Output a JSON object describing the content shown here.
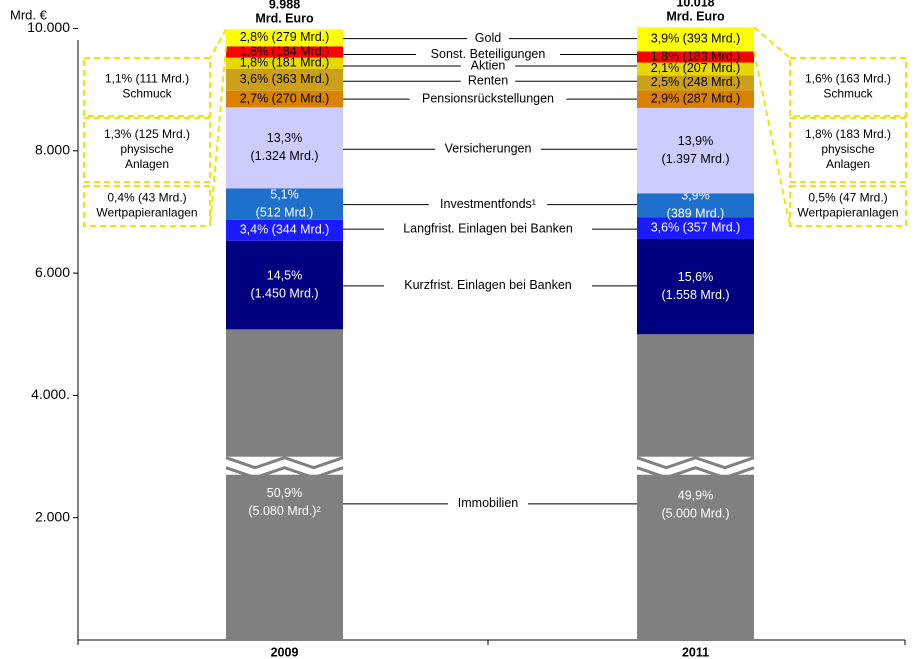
{
  "chart_data": {
    "type": "bar",
    "stacked": true,
    "y_unit_label": "Mrd. €",
    "ylim": [
      0,
      10500
    ],
    "y_break_at": 2850,
    "y_ticks": [
      {
        "value": 2000,
        "label": "2.000"
      },
      {
        "value": 4000,
        "label": "4.000."
      },
      {
        "value": 6000,
        "label": "6.000"
      },
      {
        "value": 8000,
        "label": "8.000"
      },
      {
        "value": 10000,
        "label": "10.000"
      }
    ],
    "categories": [
      "2009",
      "2011"
    ],
    "totals": [
      {
        "value": "9.988",
        "unit": "Mrd. Euro"
      },
      {
        "value": "10.018",
        "unit": "Mrd. Euro"
      }
    ],
    "segments": [
      {
        "name": "Immobilien",
        "color": "#808080",
        "text_color": "#ffffff",
        "two_line": true,
        "break": true,
        "values": [
          5080,
          5000
        ],
        "labels": [
          [
            "50,9%",
            "(5.080 Mrd.)²"
          ],
          [
            "49,9%",
            "(5.000 Mrd.)"
          ]
        ]
      },
      {
        "name": "Kurzfrist. Einlagen bei Banken",
        "color": "#000080",
        "text_color": "#ffffff",
        "two_line": true,
        "values": [
          1450,
          1558
        ],
        "labels": [
          [
            "14,5%",
            "(1.450 Mrd.)"
          ],
          [
            "15,6%",
            "(1.558 Mrd.)"
          ]
        ]
      },
      {
        "name": "Langfrist. Einlagen bei Banken",
        "color": "#1a1aff",
        "text_color": "#ffffff",
        "two_line": false,
        "values": [
          344,
          357
        ],
        "labels": [
          [
            "3,4% (344 Mrd.)"
          ],
          [
            "3,6% (357 Mrd.)"
          ]
        ]
      },
      {
        "name": "Investmentfonds¹",
        "color": "#1f6fcc",
        "text_color": "#ffffff",
        "two_line": true,
        "values": [
          512,
          389
        ],
        "labels": [
          [
            "5,1%",
            "(512 Mrd.)"
          ],
          [
            "3,9%",
            "(389 Mrd.)"
          ]
        ]
      },
      {
        "name": "Versicherungen",
        "color": "#ccccff",
        "text_color": "#000000",
        "two_line": true,
        "values": [
          1324,
          1397
        ],
        "labels": [
          [
            "13,3%",
            "(1.324 Mrd.)"
          ],
          [
            "13,9%",
            "(1.397 Mrd.)"
          ]
        ]
      },
      {
        "name": "Pensionsrückstellungen",
        "color": "#d98200",
        "text_color": "#000000",
        "two_line": false,
        "values": [
          270,
          287
        ],
        "labels": [
          [
            "2,7% (270 Mrd.)"
          ],
          [
            "2,9% (287 Mrd.)"
          ]
        ]
      },
      {
        "name": "Renten",
        "color": "#cca01a",
        "text_color": "#000000",
        "two_line": false,
        "values": [
          363,
          248
        ],
        "labels": [
          [
            "3,6% (363 Mrd.)"
          ],
          [
            "2,5% (248 Mrd.)"
          ]
        ]
      },
      {
        "name": "Aktien",
        "color": "#e6d800",
        "text_color": "#000000",
        "two_line": false,
        "values": [
          181,
          207
        ],
        "labels": [
          [
            "1,8% (181 Mrd.)"
          ],
          [
            "2,1% (207 Mrd.)"
          ]
        ]
      },
      {
        "name": "Sonst. Beteiligungen",
        "color": "#ff0000",
        "text_color": "#000000",
        "two_line": false,
        "values": [
          184,
          183
        ],
        "labels": [
          [
            "1,8% (184 Mrd.)"
          ],
          [
            "1,8% (183 Mrd.)"
          ]
        ]
      },
      {
        "name": "Gold",
        "color": "#ffff00",
        "text_color": "#000000",
        "two_line": false,
        "values": [
          279,
          393
        ],
        "labels": [
          [
            "2,8% (279 Mrd.)"
          ],
          [
            "3,9% (393 Mrd.)"
          ]
        ]
      }
    ],
    "gold_breakdown": {
      "border_color": "#f2e600",
      "left": [
        {
          "lines": [
            "1,1% (111 Mrd.)",
            "Schmuck"
          ]
        },
        {
          "lines": [
            "1,3% (125 Mrd.)",
            "physische",
            "Anlagen"
          ]
        },
        {
          "lines": [
            "0,4% (43 Mrd.)",
            "Wertpapieranlagen"
          ]
        }
      ],
      "right": [
        {
          "lines": [
            "1,6% (163 Mrd.)",
            "Schmuck"
          ]
        },
        {
          "lines": [
            "1,8% (183 Mrd.)",
            "physische",
            "Anlagen"
          ]
        },
        {
          "lines": [
            "0,5% (47 Mrd.)",
            "Wertpapieranlagen"
          ]
        }
      ]
    }
  }
}
